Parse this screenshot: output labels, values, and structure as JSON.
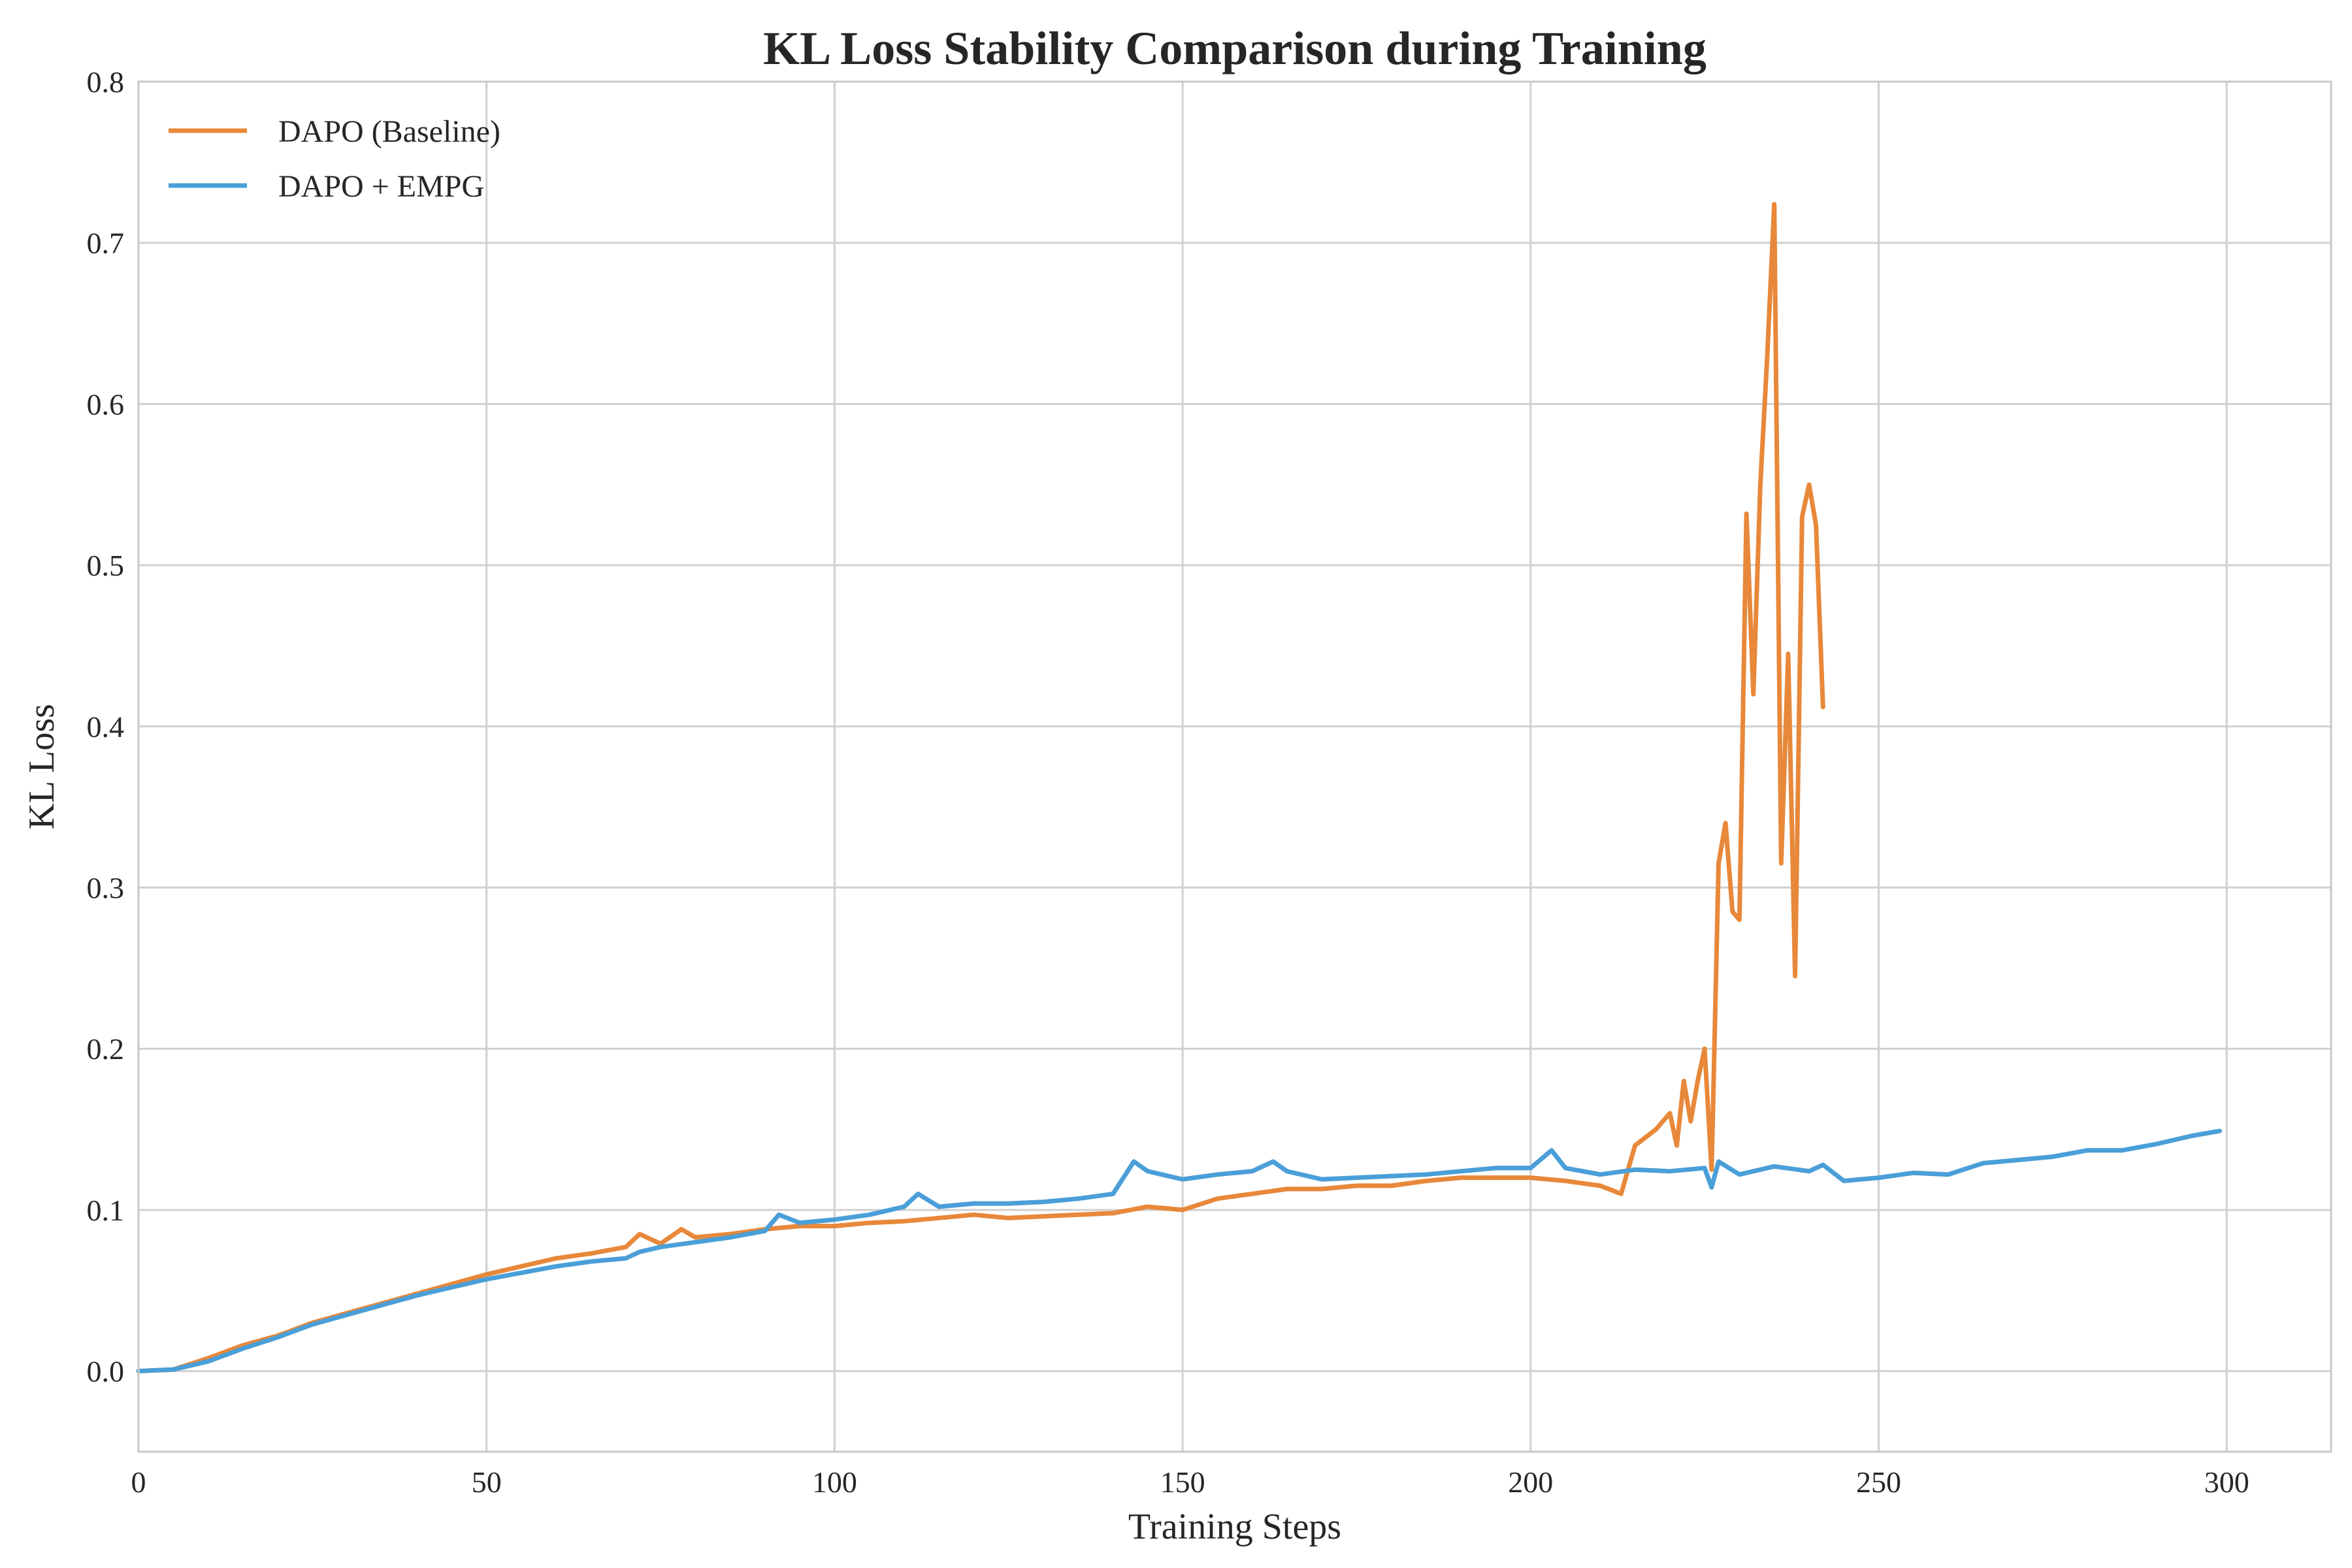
{
  "chart_data": {
    "type": "line",
    "title": "KL Loss Stability Comparison during Training",
    "xlabel": "Training Steps",
    "ylabel": "KL Loss",
    "xlim": [
      0,
      315
    ],
    "ylim": [
      -0.05,
      0.8
    ],
    "xticks": [
      0,
      50,
      100,
      150,
      200,
      250,
      300
    ],
    "yticks": [
      0.0,
      0.1,
      0.2,
      0.3,
      0.4,
      0.5,
      0.6,
      0.7,
      0.8
    ],
    "xtick_labels": [
      "0",
      "50",
      "100",
      "150",
      "200",
      "250",
      "300"
    ],
    "ytick_labels": [
      "0.0",
      "0.1",
      "0.2",
      "0.3",
      "0.4",
      "0.5",
      "0.6",
      "0.7",
      "0.8"
    ],
    "grid": true,
    "legend_position": "top-left",
    "series": [
      {
        "name": "DAPO (Baseline)",
        "color": "#e8883a",
        "x": [
          0,
          5,
          10,
          15,
          20,
          25,
          30,
          35,
          40,
          45,
          50,
          55,
          60,
          65,
          70,
          72,
          75,
          78,
          80,
          85,
          90,
          95,
          100,
          105,
          110,
          115,
          120,
          125,
          130,
          135,
          140,
          145,
          150,
          155,
          160,
          165,
          170,
          175,
          180,
          185,
          190,
          195,
          200,
          205,
          210,
          213,
          215,
          218,
          220,
          221,
          222,
          223,
          224,
          225,
          226,
          227,
          228,
          229,
          230,
          231,
          232,
          233,
          234,
          235,
          236,
          237,
          238,
          239,
          240,
          241,
          242
        ],
        "y": [
          0.0,
          0.001,
          0.008,
          0.016,
          0.022,
          0.03,
          0.036,
          0.042,
          0.048,
          0.054,
          0.06,
          0.065,
          0.07,
          0.073,
          0.077,
          0.085,
          0.079,
          0.088,
          0.083,
          0.085,
          0.088,
          0.09,
          0.09,
          0.092,
          0.093,
          0.095,
          0.097,
          0.095,
          0.096,
          0.097,
          0.098,
          0.102,
          0.1,
          0.107,
          0.11,
          0.113,
          0.113,
          0.115,
          0.115,
          0.118,
          0.12,
          0.12,
          0.12,
          0.118,
          0.115,
          0.11,
          0.14,
          0.15,
          0.16,
          0.14,
          0.18,
          0.155,
          0.18,
          0.2,
          0.125,
          0.315,
          0.34,
          0.285,
          0.28,
          0.532,
          0.42,
          0.55,
          0.63,
          0.724,
          0.315,
          0.445,
          0.245,
          0.53,
          0.55,
          0.525,
          0.412
        ]
      },
      {
        "name": "DAPO + EMPG",
        "color": "#4a9fd8",
        "x": [
          0,
          5,
          10,
          15,
          20,
          25,
          30,
          35,
          40,
          45,
          50,
          55,
          60,
          65,
          70,
          72,
          75,
          80,
          85,
          90,
          92,
          95,
          100,
          105,
          110,
          112,
          115,
          120,
          125,
          130,
          135,
          140,
          143,
          145,
          150,
          155,
          160,
          163,
          165,
          170,
          175,
          180,
          185,
          190,
          195,
          200,
          203,
          205,
          210,
          215,
          220,
          225,
          226,
          227,
          230,
          235,
          240,
          242,
          245,
          250,
          255,
          260,
          265,
          270,
          275,
          280,
          285,
          290,
          295,
          299
        ],
        "y": [
          0.0,
          0.001,
          0.006,
          0.014,
          0.021,
          0.029,
          0.035,
          0.041,
          0.047,
          0.052,
          0.057,
          0.061,
          0.065,
          0.068,
          0.07,
          0.074,
          0.077,
          0.08,
          0.083,
          0.087,
          0.097,
          0.092,
          0.094,
          0.097,
          0.102,
          0.11,
          0.102,
          0.104,
          0.104,
          0.105,
          0.107,
          0.11,
          0.13,
          0.124,
          0.119,
          0.122,
          0.124,
          0.13,
          0.124,
          0.119,
          0.12,
          0.121,
          0.122,
          0.124,
          0.126,
          0.126,
          0.137,
          0.126,
          0.122,
          0.125,
          0.124,
          0.126,
          0.114,
          0.13,
          0.122,
          0.127,
          0.124,
          0.128,
          0.118,
          0.12,
          0.123,
          0.122,
          0.129,
          0.131,
          0.133,
          0.137,
          0.137,
          0.141,
          0.146,
          0.149
        ]
      }
    ]
  }
}
